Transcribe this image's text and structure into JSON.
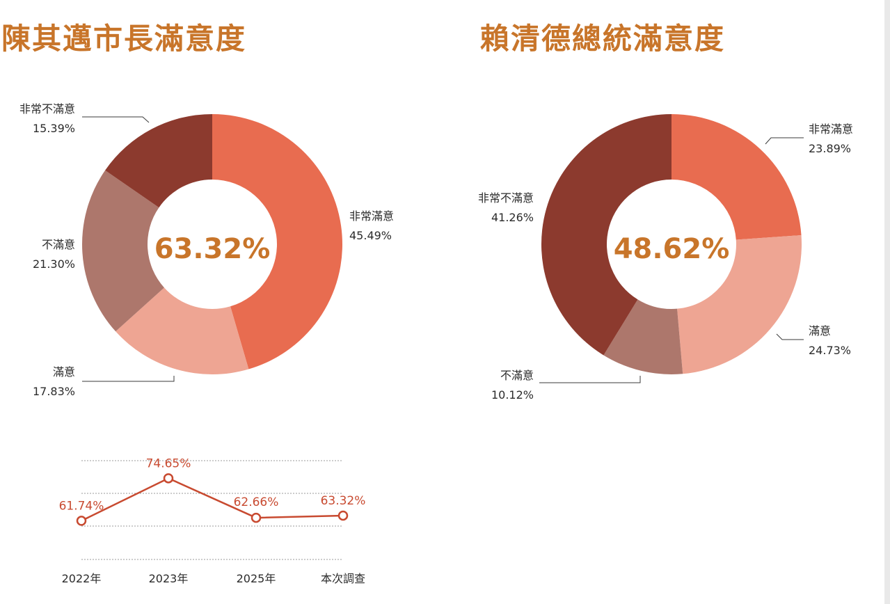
{
  "chart_data": [
    {
      "type": "pie",
      "donut": true,
      "title": "陳其邁市長滿意度",
      "center_label": "63.32%",
      "slices": [
        {
          "name": "非常滿意",
          "value": 45.49,
          "label": "45.49%",
          "color": "#e86c50"
        },
        {
          "name": "滿意",
          "value": 17.83,
          "label": "17.83%",
          "color": "#eea593"
        },
        {
          "name": "不滿意",
          "value": 21.3,
          "label": "21.30%",
          "color": "#ad776c"
        },
        {
          "name": "非常不滿意",
          "value": 15.39,
          "label": "15.39%",
          "color": "#8c3a2e"
        }
      ]
    },
    {
      "type": "pie",
      "donut": true,
      "title": "賴清德總統滿意度",
      "center_label": "48.62%",
      "slices": [
        {
          "name": "非常滿意",
          "value": 23.89,
          "label": "23.89%",
          "color": "#e86c50"
        },
        {
          "name": "滿意",
          "value": 24.73,
          "label": "24.73%",
          "color": "#eea593"
        },
        {
          "name": "不滿意",
          "value": 10.12,
          "label": "10.12%",
          "color": "#ad776c"
        },
        {
          "name": "非常不滿意",
          "value": 41.26,
          "label": "41.26%",
          "color": "#8c3a2e"
        }
      ]
    },
    {
      "type": "line",
      "categories": [
        "2022年",
        "2023年",
        "2025年",
        "本次調查"
      ],
      "series": [
        {
          "values": [
            61.74,
            74.65,
            62.66,
            63.32
          ],
          "labels": [
            "61.74%",
            "74.65%",
            "62.66%",
            "63.32%"
          ],
          "color": "#c84a30"
        }
      ],
      "ylim": [
        50,
        80
      ],
      "grid": true
    }
  ]
}
